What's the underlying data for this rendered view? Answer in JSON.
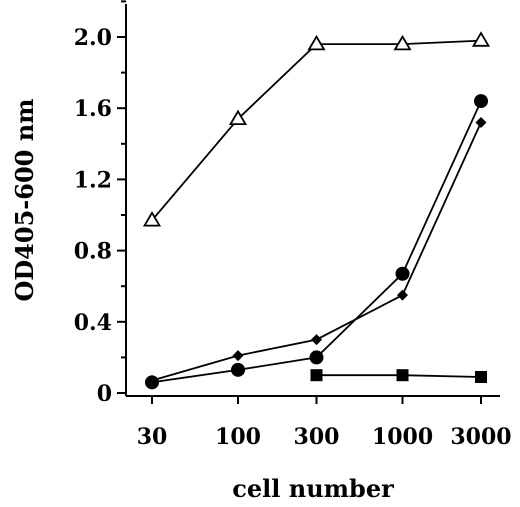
{
  "chart_data": {
    "type": "line",
    "title": "",
    "xlabel": "cell number",
    "ylabel": "OD405-600 nm",
    "x_scale": "log",
    "x_ticks": [
      30,
      100,
      300,
      1000,
      3000
    ],
    "x_tick_labels": [
      "30",
      "100",
      "300",
      "1000",
      "3000"
    ],
    "ylim": [
      0,
      2.2
    ],
    "y_ticks": [
      0,
      0.4,
      0.8,
      1.2,
      1.6,
      2.0
    ],
    "y_tick_labels": [
      "0",
      "0.4",
      "0.8",
      "1.2",
      "1.6",
      "2.0"
    ],
    "grid": false,
    "legend": "none",
    "series": [
      {
        "marker": "open-triangle",
        "color": "#000000",
        "x": [
          30,
          100,
          300,
          1000,
          3000
        ],
        "y": [
          0.97,
          1.54,
          1.96,
          1.96,
          1.98
        ]
      },
      {
        "marker": "filled-circle",
        "color": "#000000",
        "x": [
          30,
          100,
          300,
          1000,
          3000
        ],
        "y": [
          0.06,
          0.13,
          0.2,
          0.67,
          1.64
        ]
      },
      {
        "marker": "filled-diamond",
        "color": "#000000",
        "x": [
          30,
          100,
          300,
          1000,
          3000
        ],
        "y": [
          0.07,
          0.21,
          0.3,
          0.55,
          1.52
        ]
      },
      {
        "marker": "filled-square",
        "color": "#000000",
        "x": [
          300,
          1000,
          3000
        ],
        "y": [
          0.1,
          0.1,
          0.09
        ]
      }
    ]
  }
}
